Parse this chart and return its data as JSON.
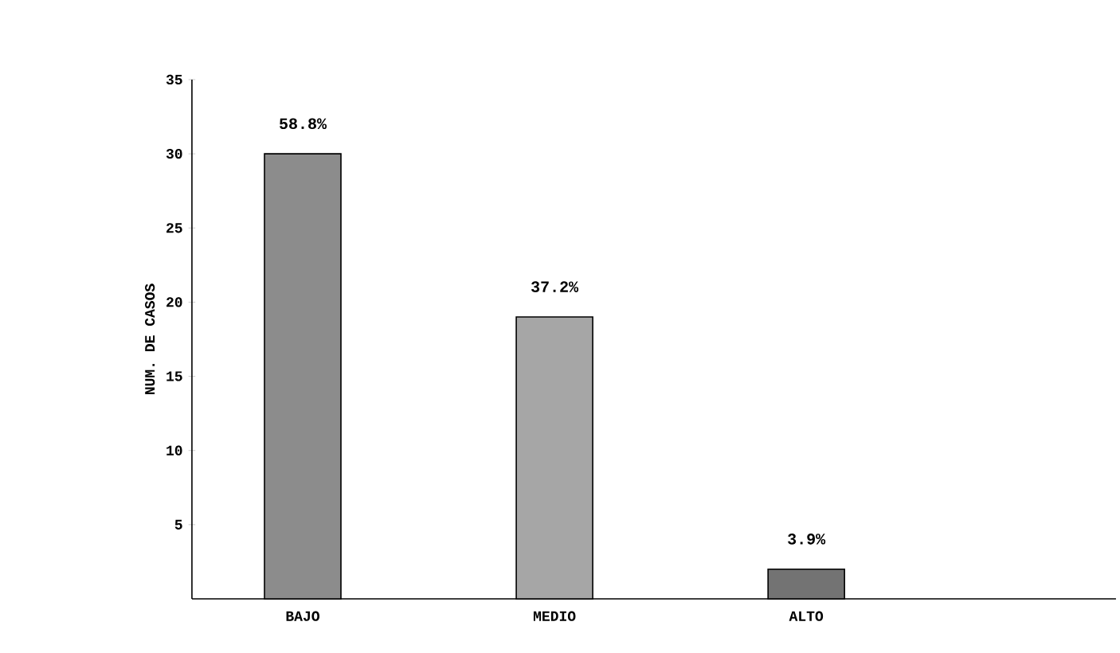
{
  "chart_data": {
    "type": "bar",
    "ylabel": "NUM. DE CASOS",
    "categories": [
      "BAJO",
      "MEDIO",
      "ALTO"
    ],
    "values": [
      30,
      19,
      2
    ],
    "annotations": [
      {
        "text": "58.8%",
        "x": "BAJO",
        "y": 30
      },
      {
        "text": "37.2%",
        "x": "MEDIO",
        "y": 19
      },
      {
        "text": "3.9%",
        "x": "ALTO",
        "y": 2
      }
    ],
    "color": "#000000",
    "ylim": [
      0,
      35
    ],
    "yticks": [
      5,
      10,
      15,
      20,
      25,
      30,
      35
    ]
  }
}
